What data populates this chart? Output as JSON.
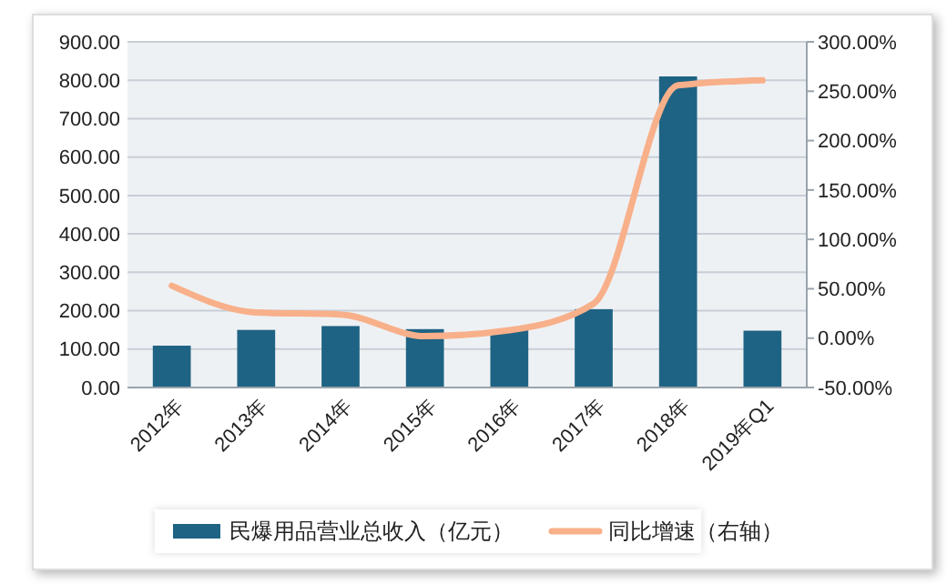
{
  "chart_data": {
    "type": "bar",
    "categories": [
      "2012年",
      "2013年",
      "2014年",
      "2015年",
      "2016年",
      "2017年",
      "2018年",
      "2019年Q1"
    ],
    "series": [
      {
        "name": "民爆用品营业总收入（亿元）",
        "color": "#1f6384",
        "values": [
          109,
          150,
          160,
          152,
          150,
          204,
          810,
          148
        ]
      },
      {
        "name": "同比增速（右轴）",
        "type": "line",
        "axis": "y2",
        "color": "#f8b08a",
        "values": [
          53,
          26,
          24,
          2,
          8,
          35,
          256,
          261
        ]
      }
    ],
    "ylim": [
      0,
      900
    ],
    "yticks": [
      {
        "value": 0,
        "label": "0.00"
      },
      {
        "value": 100,
        "label": "100.00"
      },
      {
        "value": 200,
        "label": "200.00"
      },
      {
        "value": 300,
        "label": "300.00"
      },
      {
        "value": 400,
        "label": "400.00"
      },
      {
        "value": 500,
        "label": "500.00"
      },
      {
        "value": 600,
        "label": "600.00"
      },
      {
        "value": 700,
        "label": "700.00"
      },
      {
        "value": 800,
        "label": "800.00"
      },
      {
        "value": 900,
        "label": "900.00"
      }
    ],
    "y2lim": [
      -50,
      300
    ],
    "y2ticks": [
      {
        "value": -50,
        "label": "-50.00%"
      },
      {
        "value": 0,
        "label": "0.00%"
      },
      {
        "value": 50,
        "label": "50.00%"
      },
      {
        "value": 100,
        "label": "100.00%"
      },
      {
        "value": 150,
        "label": "150.00%"
      },
      {
        "value": 200,
        "label": "200.00%"
      },
      {
        "value": 250,
        "label": "250.00%"
      },
      {
        "value": 300,
        "label": "300.00%"
      }
    ],
    "grid": "y",
    "legend": "bottom",
    "marker": "none",
    "line_style": "solid"
  }
}
